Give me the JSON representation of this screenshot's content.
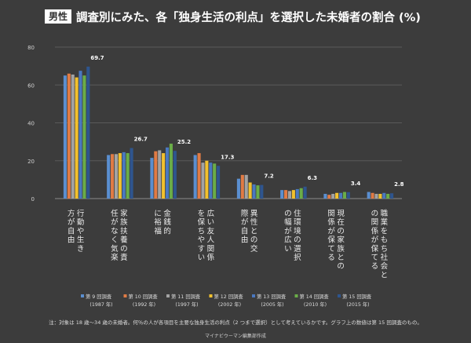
{
  "header": {
    "badge": "男性",
    "title": "調査別にみた、各「独身生活の利点」を選択した未婚者の割合 (%)"
  },
  "chart_data": {
    "type": "bar",
    "title": "調査別にみた、各「独身生活の利点」を選択した未婚者の割合 (%)",
    "ylim": [
      0,
      80
    ],
    "yticks": [
      0,
      20,
      40,
      60,
      80
    ],
    "grid": true,
    "categories": [
      "行動や生き方が自由",
      "家族扶養の責任がなく気楽",
      "金銭的に裕福",
      "広い友人関係を保ちやすい",
      "異性との交際が自由",
      "住環境の選択の幅が広い",
      "現在の家族との関係が保てる",
      "職業をもち社会との関係が保てる"
    ],
    "series": [
      {
        "name": "第 9 回調査",
        "year": "(1987 年)",
        "color": "#5b8fd0",
        "values": [
          65.0,
          23.0,
          21.5,
          23.0,
          10.5,
          4.5,
          2.5,
          3.5
        ]
      },
      {
        "name": "第 10 回調査",
        "year": "(1992 年)",
        "color": "#e07b45",
        "values": [
          66.0,
          23.5,
          25.0,
          24.0,
          12.5,
          4.5,
          2.0,
          3.0
        ]
      },
      {
        "name": "第 11 回調査",
        "year": "(1997 年)",
        "color": "#a3a3a3",
        "values": [
          65.5,
          23.5,
          25.5,
          19.0,
          12.5,
          4.0,
          2.5,
          2.5
        ]
      },
      {
        "name": "第 12 回調査",
        "year": "(2002 年)",
        "color": "#f2c12e",
        "values": [
          64.0,
          24.0,
          24.0,
          20.0,
          8.5,
          4.5,
          3.0,
          2.5
        ]
      },
      {
        "name": "第 13 回調査",
        "year": "(2005 年)",
        "color": "#4a78c0",
        "values": [
          67.5,
          24.5,
          27.0,
          19.0,
          7.5,
          5.0,
          3.0,
          3.0
        ]
      },
      {
        "name": "第 14 回調査",
        "year": "(2010 年)",
        "color": "#6aad48",
        "values": [
          65.0,
          24.0,
          29.0,
          18.5,
          7.0,
          5.5,
          3.5,
          2.5
        ]
      },
      {
        "name": "第 15 回調査",
        "year": "(2015 年)",
        "color": "#2e558e",
        "values": [
          69.7,
          26.7,
          25.2,
          17.3,
          7.2,
          6.3,
          3.4,
          2.8
        ]
      }
    ],
    "data_labels": [
      "69.7",
      "26.7",
      "25.2",
      "17.3",
      "7.2",
      "6.3",
      "3.4",
      "2.8"
    ]
  },
  "footer": {
    "note": "注：対象は 18 歳～34 歳の未婚者。何％の人が各項目を主要な独身生活の利点（2 つまで選択）として考えているかです。グラフ上の数値は第 15 回調査のもの。",
    "credit": "マイナビウーマン編集部作成"
  }
}
